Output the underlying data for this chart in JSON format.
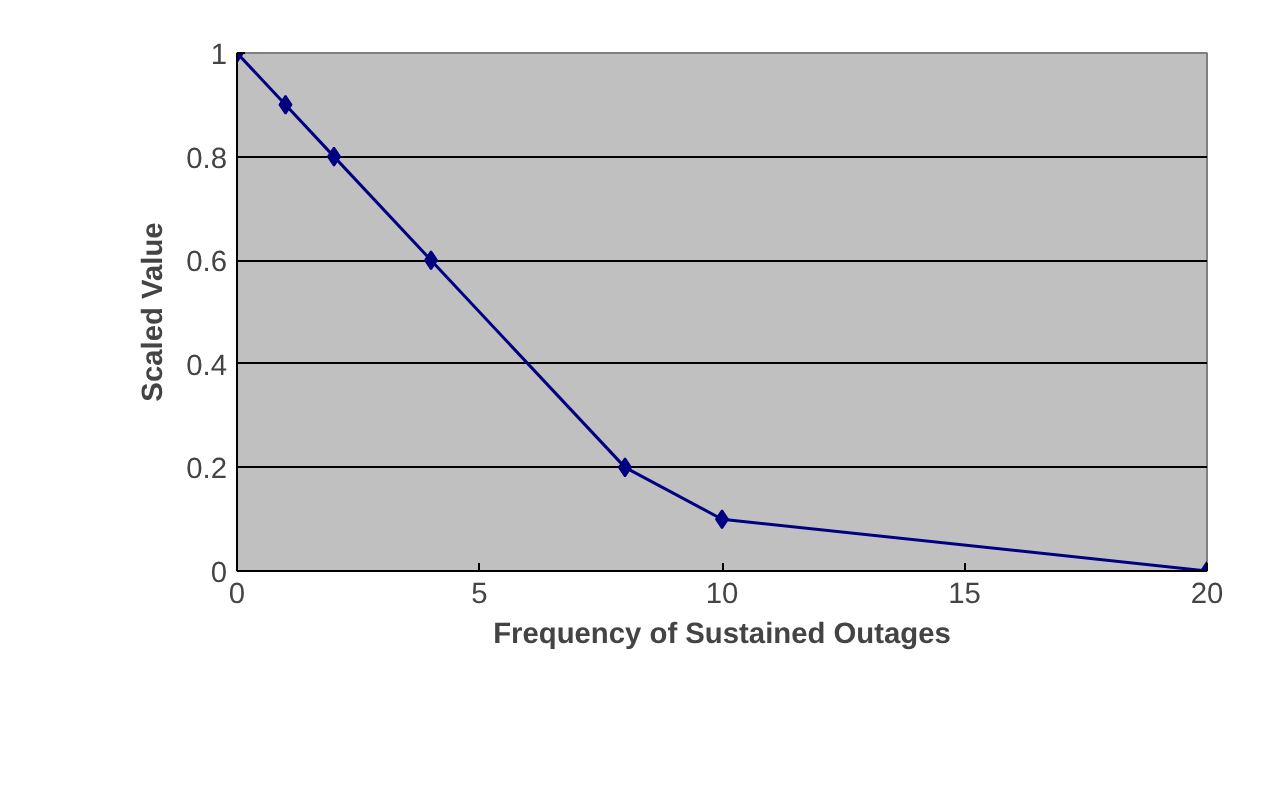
{
  "chart_data": {
    "type": "line",
    "xlabel": "Frequency of Sustained Outages",
    "ylabel": "Scaled Value",
    "x": [
      0,
      1,
      2,
      4,
      8,
      10,
      20
    ],
    "series": [
      {
        "color": "#000080",
        "values": [
          1,
          0.9,
          0.8,
          0.6,
          0.2,
          0.1,
          0
        ]
      }
    ],
    "xlim": [
      0,
      20
    ],
    "ylim": [
      0,
      1
    ],
    "xticks": [
      0,
      5,
      10,
      15,
      20
    ],
    "yticks": [
      0,
      0.2,
      0.4,
      0.6,
      0.8,
      1
    ],
    "grid": "y",
    "marker": "diamond",
    "line_style": "solid"
  }
}
